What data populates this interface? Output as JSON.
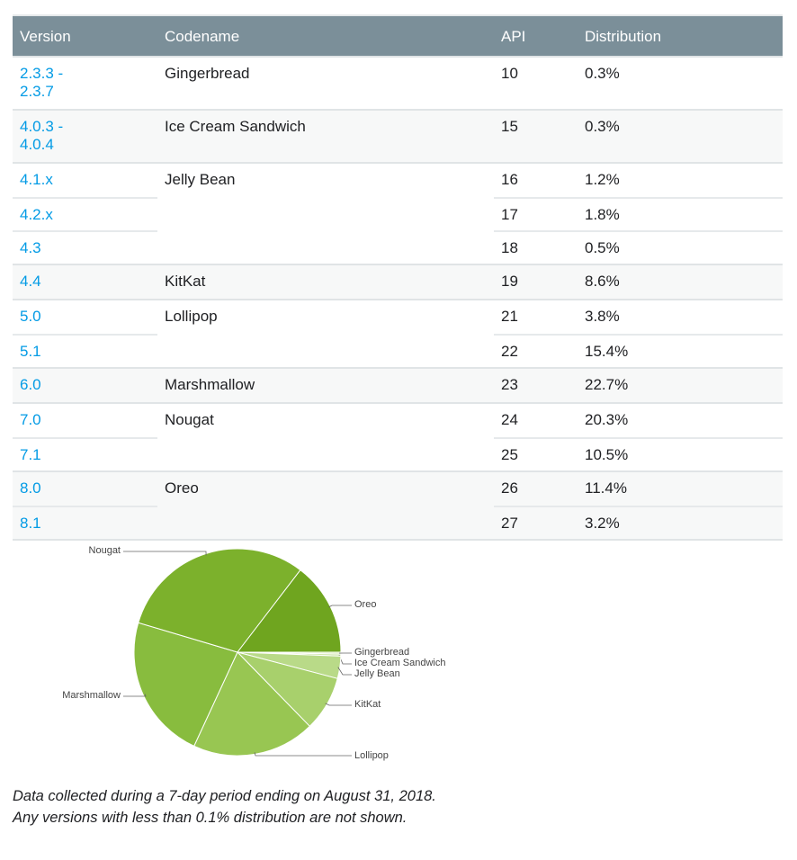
{
  "table": {
    "headers": {
      "version": "Version",
      "codename": "Codename",
      "api": "API",
      "distribution": "Distribution"
    },
    "groups": [
      {
        "codename": "Gingerbread",
        "rows": [
          {
            "version": "2.3.3 -\n2.3.7",
            "api": "10",
            "distribution": "0.3%"
          }
        ]
      },
      {
        "codename": "Ice Cream Sandwich",
        "rows": [
          {
            "version": "4.0.3 -\n4.0.4",
            "api": "15",
            "distribution": "0.3%"
          }
        ]
      },
      {
        "codename": "Jelly Bean",
        "rows": [
          {
            "version": "4.1.x",
            "api": "16",
            "distribution": "1.2%"
          },
          {
            "version": "4.2.x",
            "api": "17",
            "distribution": "1.8%"
          },
          {
            "version": "4.3",
            "api": "18",
            "distribution": "0.5%"
          }
        ]
      },
      {
        "codename": "KitKat",
        "rows": [
          {
            "version": "4.4",
            "api": "19",
            "distribution": "8.6%"
          }
        ]
      },
      {
        "codename": "Lollipop",
        "rows": [
          {
            "version": "5.0",
            "api": "21",
            "distribution": "3.8%"
          },
          {
            "version": "5.1",
            "api": "22",
            "distribution": "15.4%"
          }
        ]
      },
      {
        "codename": "Marshmallow",
        "rows": [
          {
            "version": "6.0",
            "api": "23",
            "distribution": "22.7%"
          }
        ]
      },
      {
        "codename": "Nougat",
        "rows": [
          {
            "version": "7.0",
            "api": "24",
            "distribution": "20.3%"
          },
          {
            "version": "7.1",
            "api": "25",
            "distribution": "10.5%"
          }
        ]
      },
      {
        "codename": "Oreo",
        "rows": [
          {
            "version": "8.0",
            "api": "26",
            "distribution": "11.4%"
          },
          {
            "version": "8.1",
            "api": "27",
            "distribution": "3.2%"
          }
        ]
      }
    ]
  },
  "chart_data": {
    "type": "pie",
    "categories": [
      "Gingerbread",
      "Ice Cream Sandwich",
      "Jelly Bean",
      "KitKat",
      "Lollipop",
      "Marshmallow",
      "Nougat",
      "Oreo"
    ],
    "values": [
      0.3,
      0.3,
      3.5,
      8.6,
      19.2,
      22.7,
      30.8,
      14.6
    ],
    "colors": [
      "#d5e8b0",
      "#c7e19c",
      "#b9da88",
      "#a8d06c",
      "#98c652",
      "#88bc3e",
      "#7cb12c",
      "#6fa51f"
    ]
  },
  "colors": {
    "header_bg": "#7b8f99",
    "link": "#039be5",
    "row_alt": "#f7f8f8"
  },
  "footnote": {
    "line1": "Data collected during a 7-day period ending on August 31, 2018.",
    "line2": "Any versions with less than 0.1% distribution are not shown."
  }
}
